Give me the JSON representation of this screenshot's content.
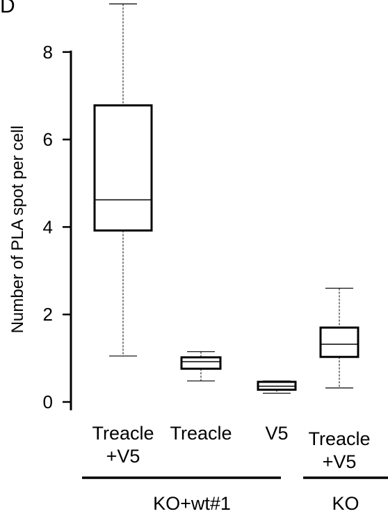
{
  "panel_label": "D",
  "chart_data": {
    "type": "box",
    "ylabel": "Number of PLA spot per cell",
    "ylim": [
      0,
      9
    ],
    "yticks": [
      0,
      2,
      4,
      6,
      8
    ],
    "boxes": [
      {
        "label_lines": [
          "Treacle",
          "+V5"
        ],
        "group": "KO+wt#1",
        "whisker_low": 1.05,
        "q1": 3.92,
        "median": 4.62,
        "q3": 6.78,
        "whisker_high": 9.1
      },
      {
        "label_lines": [
          "Treacle"
        ],
        "group": "KO+wt#1",
        "whisker_low": 0.48,
        "q1": 0.76,
        "median": 0.92,
        "q3": 1.02,
        "whisker_high": 1.15
      },
      {
        "label_lines": [
          "V5"
        ],
        "group": "KO+wt#1",
        "whisker_low": 0.2,
        "q1": 0.28,
        "median": 0.36,
        "q3": 0.46,
        "whisker_high": 0.48
      },
      {
        "label_lines": [
          "Treacle",
          "+V5"
        ],
        "group": "KO",
        "whisker_low": 0.32,
        "q1": 1.03,
        "median": 1.32,
        "q3": 1.7,
        "whisker_high": 2.6
      }
    ],
    "groups": [
      {
        "name": "KO+wt#1"
      },
      {
        "name": "KO"
      }
    ]
  }
}
